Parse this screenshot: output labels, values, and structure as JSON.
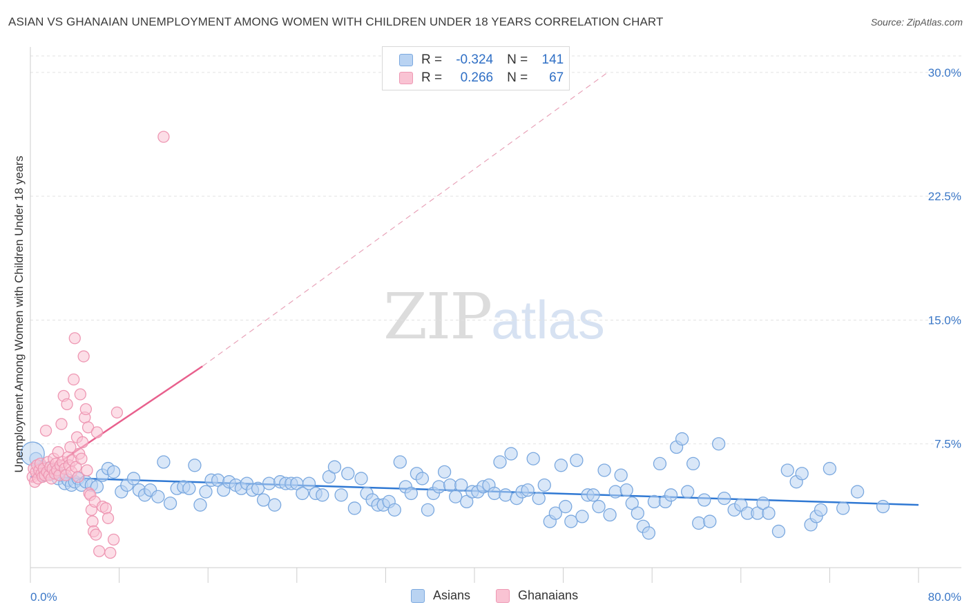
{
  "title": "ASIAN VS GHANAIAN UNEMPLOYMENT AMONG WOMEN WITH CHILDREN UNDER 18 YEARS CORRELATION CHART",
  "source": "Source: ZipAtlas.com",
  "watermark": {
    "zip": "ZIP",
    "atlas": "atlas"
  },
  "colors": {
    "asian_fill": "#b9d3f2",
    "asian_stroke": "#7aa8df",
    "asian_line": "#2f78d3",
    "ghanaian_fill": "#f9c3d3",
    "ghanaian_stroke": "#ee97b3",
    "ghanaian_line": "#e8608d",
    "tick_label": "#3a77c7",
    "grid": "#e2e2e2"
  },
  "legend": {
    "asians": {
      "r_label": "R =",
      "r_value": "-0.324",
      "n_label": "N =",
      "n_value": "141"
    },
    "ghanaians": {
      "r_label": "R =",
      "r_value": "0.266",
      "n_label": "N =",
      "n_value": "67"
    }
  },
  "chart_data": {
    "type": "scatter",
    "title": "ASIAN VS GHANAIAN UNEMPLOYMENT AMONG WOMEN WITH CHILDREN UNDER 18 YEARS CORRELATION CHART",
    "xlabel": "",
    "ylabel": "Unemployment Among Women with Children Under 18 years",
    "xlim": [
      0,
      80
    ],
    "ylim": [
      0,
      31
    ],
    "x_tick_labels": [
      "0.0%",
      "80.0%"
    ],
    "y_ticks": [
      7.5,
      15.0,
      22.5,
      30.0
    ],
    "y_tick_labels": [
      "7.5%",
      "15.0%",
      "22.5%",
      "30.0%"
    ],
    "grid": "horizontal dashed",
    "legend_position": "top-center",
    "series": [
      {
        "name": "Asians",
        "r": -0.324,
        "n": 141,
        "trend": {
          "x0": 0,
          "y0": 5.5,
          "x1": 80,
          "y1": 3.8
        },
        "points": [
          [
            0.5,
            6.6
          ],
          [
            0.8,
            5.8
          ],
          [
            1.0,
            6.1
          ],
          [
            1.2,
            5.6
          ],
          [
            1.5,
            6.0
          ],
          [
            1.8,
            5.7
          ],
          [
            2.2,
            5.9
          ],
          [
            2.5,
            5.4
          ],
          [
            2.8,
            5.6
          ],
          [
            3.1,
            5.1
          ],
          [
            3.4,
            5.3
          ],
          [
            3.7,
            5.0
          ],
          [
            4.0,
            5.2
          ],
          [
            4.3,
            5.4
          ],
          [
            4.6,
            5.0
          ],
          [
            5.0,
            5.2
          ],
          [
            5.5,
            5.0
          ],
          [
            6.0,
            4.9
          ],
          [
            6.5,
            5.6
          ],
          [
            7.0,
            6.0
          ],
          [
            7.5,
            5.8
          ],
          [
            8.2,
            4.6
          ],
          [
            8.7,
            5.0
          ],
          [
            9.3,
            5.4
          ],
          [
            9.8,
            4.7
          ],
          [
            10.3,
            4.4
          ],
          [
            10.8,
            4.7
          ],
          [
            11.5,
            4.3
          ],
          [
            12.0,
            6.4
          ],
          [
            12.6,
            3.9
          ],
          [
            13.2,
            4.8
          ],
          [
            13.8,
            4.9
          ],
          [
            14.3,
            4.8
          ],
          [
            14.8,
            6.2
          ],
          [
            15.3,
            3.8
          ],
          [
            15.8,
            4.6
          ],
          [
            16.3,
            5.3
          ],
          [
            16.9,
            5.3
          ],
          [
            17.4,
            4.7
          ],
          [
            17.9,
            5.2
          ],
          [
            18.5,
            5.0
          ],
          [
            19.0,
            4.8
          ],
          [
            19.5,
            5.1
          ],
          [
            20.0,
            4.7
          ],
          [
            20.5,
            4.8
          ],
          [
            21.0,
            4.1
          ],
          [
            21.5,
            5.1
          ],
          [
            22.0,
            3.8
          ],
          [
            22.5,
            5.2
          ],
          [
            23.0,
            5.1
          ],
          [
            23.5,
            5.1
          ],
          [
            24.0,
            5.1
          ],
          [
            24.5,
            4.5
          ],
          [
            25.1,
            5.1
          ],
          [
            25.7,
            4.5
          ],
          [
            26.3,
            4.4
          ],
          [
            26.9,
            5.5
          ],
          [
            27.4,
            6.1
          ],
          [
            28.0,
            4.4
          ],
          [
            28.6,
            5.7
          ],
          [
            29.2,
            3.6
          ],
          [
            29.8,
            5.4
          ],
          [
            30.3,
            4.5
          ],
          [
            30.8,
            4.1
          ],
          [
            31.3,
            3.8
          ],
          [
            31.8,
            3.8
          ],
          [
            32.3,
            4.0
          ],
          [
            32.8,
            3.5
          ],
          [
            33.3,
            6.4
          ],
          [
            33.8,
            4.9
          ],
          [
            34.3,
            4.5
          ],
          [
            34.8,
            5.7
          ],
          [
            35.3,
            5.4
          ],
          [
            35.8,
            3.5
          ],
          [
            36.3,
            4.5
          ],
          [
            36.8,
            4.9
          ],
          [
            37.3,
            5.8
          ],
          [
            37.8,
            5.0
          ],
          [
            38.3,
            4.3
          ],
          [
            38.8,
            5.0
          ],
          [
            39.3,
            4.0
          ],
          [
            39.8,
            4.6
          ],
          [
            40.3,
            4.6
          ],
          [
            40.8,
            4.9
          ],
          [
            41.3,
            5.0
          ],
          [
            41.8,
            4.5
          ],
          [
            42.3,
            6.4
          ],
          [
            42.8,
            4.4
          ],
          [
            43.3,
            6.9
          ],
          [
            43.8,
            4.2
          ],
          [
            44.3,
            4.6
          ],
          [
            44.8,
            4.7
          ],
          [
            45.3,
            6.6
          ],
          [
            45.8,
            4.2
          ],
          [
            46.3,
            5.0
          ],
          [
            46.8,
            2.8
          ],
          [
            47.3,
            3.3
          ],
          [
            47.8,
            6.2
          ],
          [
            48.2,
            3.7
          ],
          [
            48.7,
            2.8
          ],
          [
            49.2,
            6.5
          ],
          [
            49.7,
            3.1
          ],
          [
            50.2,
            4.4
          ],
          [
            50.7,
            4.4
          ],
          [
            51.2,
            3.7
          ],
          [
            51.7,
            5.9
          ],
          [
            52.2,
            3.2
          ],
          [
            52.7,
            4.6
          ],
          [
            53.2,
            5.6
          ],
          [
            53.7,
            4.7
          ],
          [
            54.2,
            3.9
          ],
          [
            54.7,
            3.3
          ],
          [
            55.2,
            2.5
          ],
          [
            55.7,
            2.1
          ],
          [
            56.2,
            4.0
          ],
          [
            56.7,
            6.3
          ],
          [
            57.2,
            4.0
          ],
          [
            57.7,
            4.4
          ],
          [
            58.2,
            7.3
          ],
          [
            58.7,
            7.8
          ],
          [
            59.2,
            4.6
          ],
          [
            59.7,
            6.3
          ],
          [
            60.2,
            2.7
          ],
          [
            60.7,
            4.1
          ],
          [
            61.2,
            2.8
          ],
          [
            62.0,
            7.5
          ],
          [
            62.5,
            4.2
          ],
          [
            63.4,
            3.5
          ],
          [
            64.0,
            3.8
          ],
          [
            64.6,
            3.3
          ],
          [
            65.5,
            3.3
          ],
          [
            66.0,
            3.9
          ],
          [
            66.5,
            3.3
          ],
          [
            67.4,
            2.2
          ],
          [
            68.2,
            5.9
          ],
          [
            69.0,
            5.2
          ],
          [
            69.5,
            5.7
          ],
          [
            70.3,
            2.6
          ],
          [
            70.8,
            3.1
          ],
          [
            71.2,
            3.5
          ],
          [
            72.0,
            6.0
          ],
          [
            73.2,
            3.6
          ],
          [
            74.5,
            4.6
          ],
          [
            76.8,
            3.7
          ]
        ]
      },
      {
        "name": "Ghanaians",
        "r": 0.266,
        "n": 67,
        "trend": {
          "x0": 0,
          "y0": 5.2,
          "x1": 15.5,
          "y1": 12.2,
          "extended_x1": 52,
          "extended_y1": 30
        },
        "points": [
          [
            0.2,
            5.5
          ],
          [
            0.3,
            6.0
          ],
          [
            0.4,
            5.2
          ],
          [
            0.5,
            5.8
          ],
          [
            0.6,
            6.2
          ],
          [
            0.7,
            5.4
          ],
          [
            0.8,
            5.9
          ],
          [
            0.9,
            6.3
          ],
          [
            1.0,
            5.7
          ],
          [
            1.1,
            5.5
          ],
          [
            1.2,
            6.0
          ],
          [
            1.3,
            5.6
          ],
          [
            1.4,
            8.3
          ],
          [
            1.5,
            5.8
          ],
          [
            1.6,
            6.4
          ],
          [
            1.7,
            5.6
          ],
          [
            1.8,
            6.1
          ],
          [
            1.9,
            5.4
          ],
          [
            2.0,
            6.0
          ],
          [
            2.1,
            6.6
          ],
          [
            2.2,
            5.7
          ],
          [
            2.3,
            6.3
          ],
          [
            2.4,
            5.9
          ],
          [
            2.5,
            7.0
          ],
          [
            2.6,
            5.6
          ],
          [
            2.7,
            6.2
          ],
          [
            2.8,
            8.7
          ],
          [
            2.9,
            6.4
          ],
          [
            3.0,
            10.4
          ],
          [
            3.1,
            6.0
          ],
          [
            3.2,
            5.6
          ],
          [
            3.3,
            9.9
          ],
          [
            3.4,
            6.7
          ],
          [
            3.5,
            6.2
          ],
          [
            3.6,
            7.3
          ],
          [
            3.7,
            5.8
          ],
          [
            3.8,
            6.5
          ],
          [
            3.9,
            11.4
          ],
          [
            4.0,
            13.9
          ],
          [
            4.1,
            6.1
          ],
          [
            4.2,
            7.9
          ],
          [
            4.3,
            5.5
          ],
          [
            4.4,
            6.9
          ],
          [
            4.5,
            10.5
          ],
          [
            4.6,
            6.6
          ],
          [
            4.7,
            7.6
          ],
          [
            4.8,
            12.8
          ],
          [
            4.9,
            9.1
          ],
          [
            5.0,
            9.6
          ],
          [
            5.1,
            5.9
          ],
          [
            5.2,
            8.5
          ],
          [
            5.3,
            4.5
          ],
          [
            5.4,
            4.4
          ],
          [
            5.5,
            3.5
          ],
          [
            5.6,
            2.8
          ],
          [
            5.7,
            2.2
          ],
          [
            5.8,
            4.0
          ],
          [
            5.9,
            2.0
          ],
          [
            6.0,
            8.2
          ],
          [
            6.2,
            1.0
          ],
          [
            6.5,
            3.7
          ],
          [
            6.8,
            3.6
          ],
          [
            7.0,
            3.0
          ],
          [
            7.2,
            0.9
          ],
          [
            7.5,
            1.7
          ],
          [
            7.8,
            9.4
          ],
          [
            12.0,
            26.1
          ]
        ]
      }
    ]
  }
}
